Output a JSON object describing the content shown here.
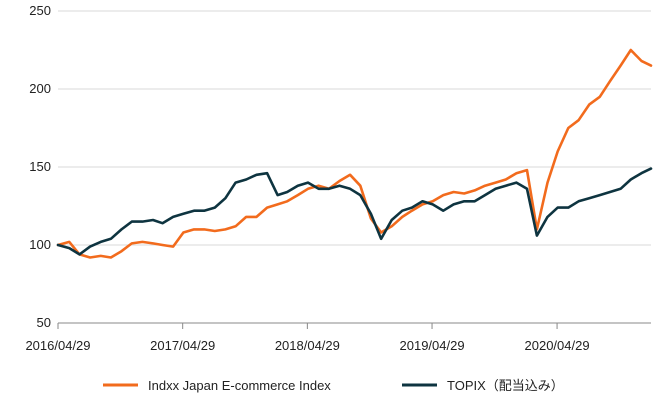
{
  "chart_data": {
    "type": "line",
    "title": "",
    "xlabel": "",
    "ylabel": "",
    "xlim": [
      "2016/04/29",
      "2021/01/29"
    ],
    "ylim": [
      50,
      250
    ],
    "y_ticks": [
      50,
      100,
      150,
      200,
      250
    ],
    "x_ticks": [
      "2016/04/29",
      "2017/04/29",
      "2018/04/29",
      "2019/04/29",
      "2020/04/29"
    ],
    "grid": "horizontal",
    "legend_position": "bottom",
    "x": [
      "2016/04/29",
      "2016/06/01",
      "2016/07/01",
      "2016/08/01",
      "2016/09/01",
      "2016/10/01",
      "2016/11/01",
      "2016/12/01",
      "2017/01/01",
      "2017/02/01",
      "2017/03/01",
      "2017/04/01",
      "2017/05/01",
      "2017/06/01",
      "2017/07/01",
      "2017/08/01",
      "2017/09/01",
      "2017/10/01",
      "2017/11/01",
      "2017/12/01",
      "2018/01/01",
      "2018/02/01",
      "2018/03/01",
      "2018/04/01",
      "2018/05/01",
      "2018/06/01",
      "2018/07/01",
      "2018/08/01",
      "2018/09/01",
      "2018/10/01",
      "2018/11/01",
      "2018/12/01",
      "2019/01/01",
      "2019/02/01",
      "2019/03/01",
      "2019/04/01",
      "2019/05/01",
      "2019/06/01",
      "2019/07/01",
      "2019/08/01",
      "2019/09/01",
      "2019/10/01",
      "2019/11/01",
      "2019/12/01",
      "2020/01/01",
      "2020/02/01",
      "2020/03/01",
      "2020/04/01",
      "2020/05/01",
      "2020/06/01",
      "2020/07/01",
      "2020/08/01",
      "2020/09/01",
      "2020/10/01",
      "2020/11/01",
      "2020/12/01",
      "2021/01/01",
      "2021/01/29"
    ],
    "series": [
      {
        "name": "Indxx Japan E-commerce Index",
        "color": "#F26B1D",
        "values": [
          100,
          102,
          94,
          92,
          93,
          92,
          96,
          101,
          102,
          101,
          100,
          99,
          108,
          110,
          110,
          109,
          110,
          112,
          118,
          118,
          124,
          126,
          128,
          132,
          136,
          138,
          136,
          141,
          145,
          138,
          117,
          108,
          112,
          118,
          122,
          126,
          128,
          132,
          134,
          133,
          135,
          138,
          140,
          142,
          146,
          148,
          110,
          140,
          160,
          175,
          180,
          190,
          195,
          205,
          215,
          225,
          218,
          215
        ]
      },
      {
        "name": "TOPIX（配当込み）",
        "color": "#0E3440",
        "values": [
          100,
          98,
          94,
          99,
          102,
          104,
          110,
          115,
          115,
          116,
          114,
          118,
          120,
          122,
          122,
          124,
          130,
          140,
          142,
          145,
          146,
          132,
          134,
          138,
          140,
          136,
          136,
          138,
          136,
          132,
          120,
          104,
          116,
          122,
          124,
          128,
          126,
          122,
          126,
          128,
          128,
          132,
          136,
          138,
          140,
          136,
          106,
          118,
          124,
          124,
          128,
          130,
          132,
          134,
          136,
          142,
          146,
          149
        ]
      }
    ]
  }
}
